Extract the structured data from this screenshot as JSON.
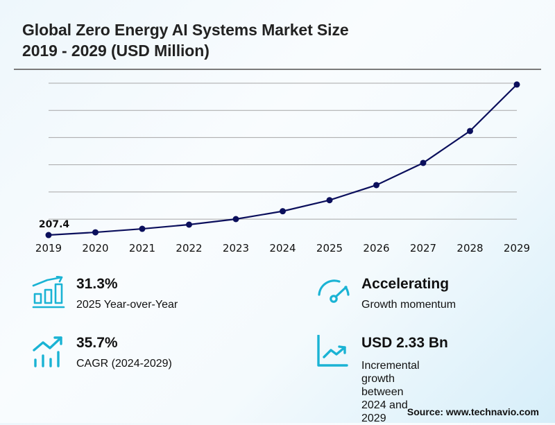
{
  "header": {
    "title_line1": "Global Zero Energy AI Systems Market Size",
    "title_line2": "2019 - 2029 (USD Million)"
  },
  "chart_data": {
    "type": "line",
    "title": "Global Zero Energy AI Systems Market Size 2019 - 2029 (USD Million)",
    "xlabel": "",
    "ylabel": "",
    "categories": [
      "2019",
      "2020",
      "2021",
      "2022",
      "2023",
      "2024",
      "2025",
      "2026",
      "2027",
      "2028",
      "2029"
    ],
    "series": [
      {
        "name": "Market Size (USD Million)",
        "color": "#0b0f5c",
        "values": [
          207.4,
          258,
          322,
          399,
          501,
          646,
          849,
          1126,
          1534,
          2121,
          2976
        ]
      }
    ],
    "data_labels": [
      {
        "index": 0,
        "text": "207.4"
      }
    ],
    "ylim": [
      0,
      3000
    ],
    "gridlines": [
      500,
      1000,
      1500,
      2000,
      2500,
      3000
    ],
    "grid": true,
    "y_tick_labels_visible": false,
    "legend": "none"
  },
  "stats": [
    {
      "icon": "bar-chart-growth-icon",
      "value": "31.3%",
      "desc": "2025 Year-over-Year"
    },
    {
      "icon": "speedometer-icon",
      "value": "Accelerating",
      "desc": "Growth momentum"
    },
    {
      "icon": "trend-up-bars-icon",
      "value": "35.7%",
      "desc": "CAGR (2024-2029)"
    },
    {
      "icon": "line-chart-growth-icon",
      "value": "USD 2.33 Bn",
      "desc": "Incremental growth\nbetween 2024 and 2029"
    }
  ],
  "colors": {
    "accent": "#1ab3d4",
    "line": "#0b0f5c",
    "grid": "#a6a6a6"
  },
  "source": "Source: www.technavio.com"
}
